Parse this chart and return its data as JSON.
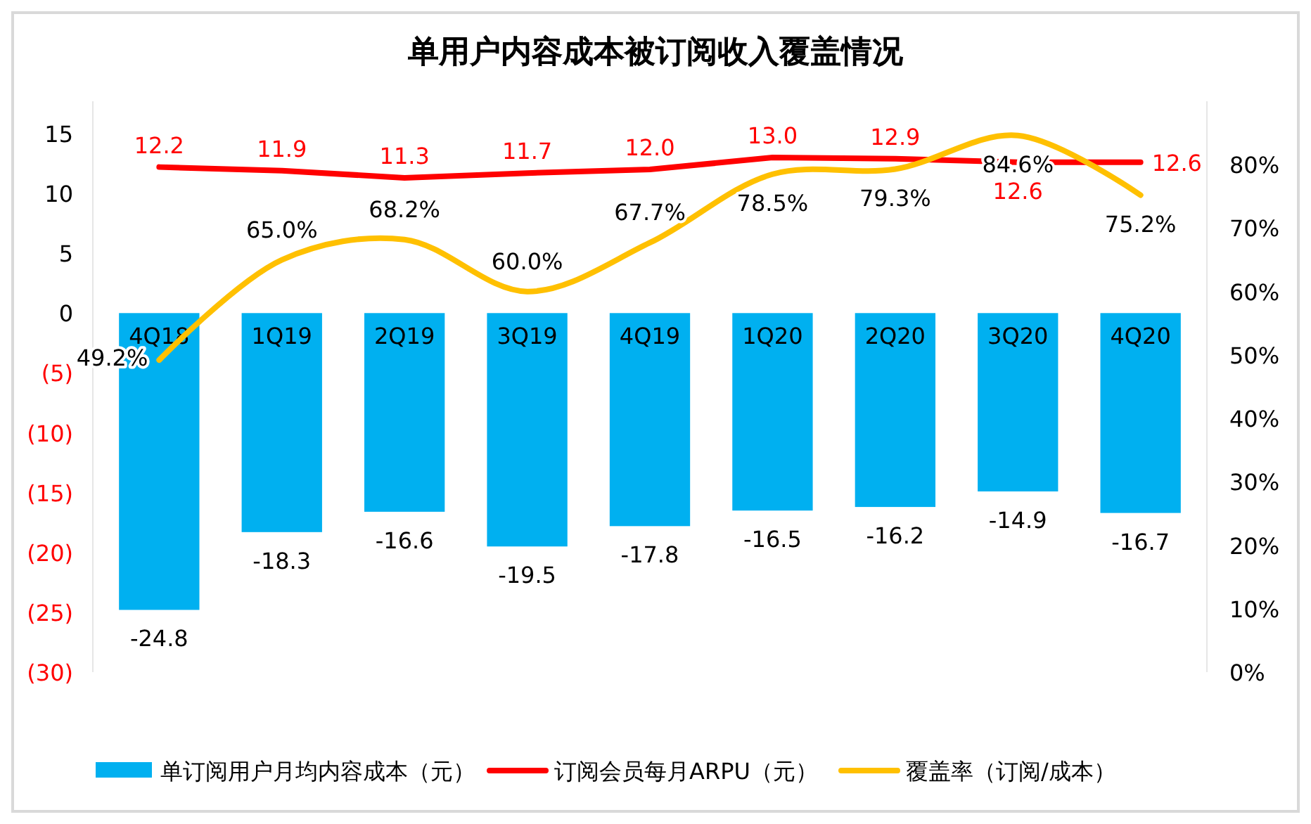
{
  "chart_data": {
    "type": "bar",
    "title": "单用户内容成本被订阅收入覆盖情况",
    "categories": [
      "4Q18",
      "1Q19",
      "2Q19",
      "3Q19",
      "4Q19",
      "1Q20",
      "2Q20",
      "3Q20",
      "4Q20"
    ],
    "series": [
      {
        "name": "单订阅用户月均内容成本（元）",
        "color": "#00b0f0",
        "values": [
          -24.8,
          -18.3,
          -16.6,
          -19.5,
          -17.8,
          -16.5,
          -16.2,
          -14.9,
          -16.7
        ]
      },
      {
        "name": "订阅会员每月ARPU（元）",
        "type": "line",
        "color": "#ff0000",
        "values": [
          12.2,
          11.9,
          11.3,
          11.7,
          12.0,
          13.0,
          12.9,
          12.6,
          12.6
        ],
        "value_labels": [
          "12.2",
          "11.9",
          "11.3",
          "11.7",
          "12.0",
          "13.0",
          "12.9",
          "12.6",
          "12.6"
        ]
      },
      {
        "name": "覆盖率（订阅/成本）",
        "type": "line",
        "axis": "y2",
        "color": "#ffc000",
        "values": [
          49.2,
          65.0,
          68.2,
          60.0,
          67.7,
          78.5,
          79.3,
          84.6,
          75.2
        ],
        "value_labels": [
          "49.2%",
          "65.0%",
          "68.2%",
          "60.0%",
          "67.7%",
          "78.5%",
          "79.3%",
          "84.6%",
          "75.2%"
        ]
      }
    ],
    "data_labels": true,
    "ylim": [
      -30,
      17.7
    ],
    "yticks": [
      {
        "value": -30,
        "label": "(30)"
      },
      {
        "value": -25,
        "label": "(25)"
      },
      {
        "value": -20,
        "label": "(20)"
      },
      {
        "value": -15,
        "label": "(15)"
      },
      {
        "value": -10,
        "label": "(10)"
      },
      {
        "value": -5,
        "label": "(5)"
      },
      0,
      5,
      10,
      15
    ],
    "y2lim": [
      0,
      90
    ],
    "y2ticks": [
      {
        "value": 0,
        "label": "0%"
      },
      {
        "value": 10,
        "label": "10%"
      },
      {
        "value": 20,
        "label": "20%"
      },
      {
        "value": 30,
        "label": "30%"
      },
      {
        "value": 40,
        "label": "40%"
      },
      {
        "value": 50,
        "label": "50%"
      },
      {
        "value": 60,
        "label": "60%"
      },
      {
        "value": 70,
        "label": "70%"
      },
      {
        "value": 80,
        "label": "80%"
      }
    ],
    "grid": false,
    "legend": "bottom"
  }
}
